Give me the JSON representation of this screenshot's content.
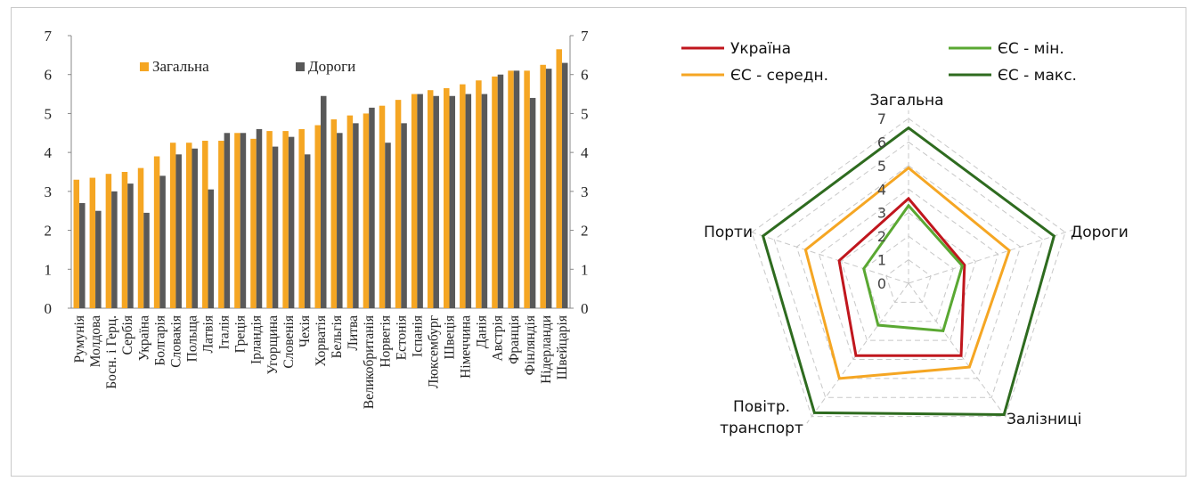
{
  "chart_data": [
    {
      "type": "bar",
      "categories": [
        "Румунія",
        "Молдова",
        "Босн. і Герц.",
        "Сербія",
        "Україна",
        "Болгарія",
        "Словакія",
        "Польща",
        "Латвія",
        "Італія",
        "Греція",
        "Ірландія",
        "Угорщина",
        "Словенія",
        "Чехія",
        "Хорватія",
        "Бельгія",
        "Литва",
        "Великобританія",
        "Норвегія",
        "Естонія",
        "Іспанія",
        "Люксембург",
        "Швеція",
        "Німеччина",
        "Данія",
        "Австрія",
        "Франція",
        "Фінляндія",
        "Нідерланди",
        "Швейцарія"
      ],
      "series": [
        {
          "name": "Загальна",
          "color": "#f5a623",
          "values": [
            3.3,
            3.35,
            3.45,
            3.5,
            3.6,
            3.9,
            4.25,
            4.25,
            4.3,
            4.3,
            4.5,
            4.35,
            4.55,
            4.55,
            4.6,
            4.7,
            4.85,
            4.95,
            5.0,
            5.2,
            5.35,
            5.5,
            5.6,
            5.65,
            5.75,
            5.85,
            5.95,
            6.1,
            6.1,
            6.25,
            6.65
          ]
        },
        {
          "name": "Дороги",
          "color": "#595959",
          "values": [
            2.7,
            2.5,
            3.0,
            3.2,
            2.45,
            3.4,
            3.95,
            4.1,
            3.05,
            4.5,
            4.5,
            4.6,
            4.15,
            4.4,
            3.95,
            5.45,
            4.5,
            4.75,
            5.15,
            4.25,
            4.75,
            5.5,
            5.45,
            5.45,
            5.5,
            5.5,
            6.0,
            6.1,
            5.4,
            6.15,
            6.3
          ]
        }
      ],
      "ylim": [
        0,
        7
      ],
      "yticks": [
        0,
        1,
        2,
        3,
        4,
        5,
        6,
        7
      ],
      "legend": {
        "position": "top-left-inside"
      }
    },
    {
      "type": "radar",
      "axes": [
        "Загальна",
        "Дороги",
        "Залізниці",
        "Повітр. транспорт",
        "Порти"
      ],
      "axis_label_lines": [
        [
          "Загальна"
        ],
        [
          "Дороги"
        ],
        [
          "Залізниці"
        ],
        [
          "Повітр.",
          "транспорт"
        ],
        [
          "Порти"
        ]
      ],
      "rticks": [
        "0",
        "1",
        "2",
        "3",
        "4",
        "5",
        "6",
        "7"
      ],
      "rlim": [
        0,
        7
      ],
      "series": [
        {
          "name": "Україна",
          "color": "#c0161d",
          "values": [
            3.6,
            2.5,
            3.8,
            3.8,
            3.1
          ]
        },
        {
          "name": "ЄС - мін.",
          "color": "#5aa832",
          "values": [
            3.3,
            2.4,
            2.5,
            2.2,
            2.0
          ]
        },
        {
          "name": "ЄС - середн.",
          "color": "#f5a623",
          "values": [
            4.9,
            4.5,
            4.4,
            5.0,
            4.6
          ]
        },
        {
          "name": "ЄС - макс.",
          "color": "#2e6b1f",
          "values": [
            6.6,
            6.5,
            6.9,
            6.8,
            6.5
          ]
        }
      ],
      "legend": {
        "position": "top"
      }
    }
  ]
}
